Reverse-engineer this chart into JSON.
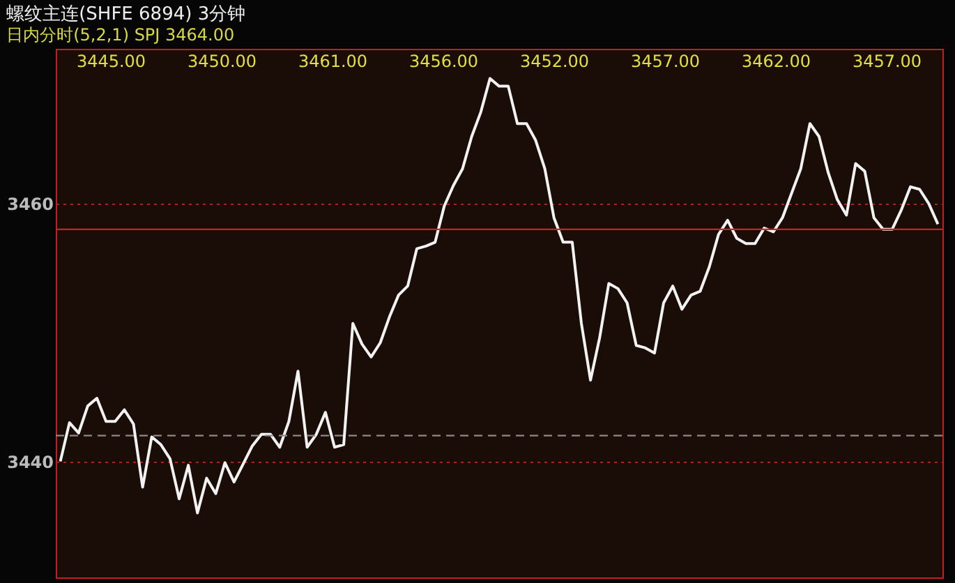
{
  "chart_data": {
    "type": "line",
    "title": "螺纹主连(SHFE 6894)  3分钟",
    "subtitle": "日内分时(5,2,1)  SPJ 3464.00",
    "categories": [
      null,
      null,
      null,
      null,
      null,
      null,
      null,
      null,
      null,
      null,
      null,
      null,
      null,
      null,
      null,
      null,
      null,
      null,
      null,
      null,
      null,
      null,
      null,
      null,
      null,
      null,
      null,
      null,
      null,
      null,
      null,
      null,
      null,
      null,
      null,
      null,
      null,
      null,
      null,
      null,
      null,
      null,
      null,
      null,
      null,
      null,
      null,
      null,
      null,
      null,
      null,
      null,
      null,
      null,
      null,
      null,
      null,
      null,
      null,
      null,
      null,
      null,
      null,
      null,
      null,
      null,
      null,
      null,
      null,
      null,
      null,
      null,
      null,
      null,
      null,
      null,
      null,
      null,
      null,
      null,
      null,
      null,
      null,
      null,
      null,
      null,
      null,
      null,
      null,
      null,
      null,
      null,
      null,
      null,
      null,
      null,
      null
    ],
    "series": [
      {
        "color": "#f2f2f2",
        "line_style": "solid",
        "values": [
          3440.0,
          3443.0,
          3442.2,
          3444.3,
          3444.9,
          3443.1,
          3443.1,
          3444.0,
          3442.9,
          3438.0,
          3441.9,
          3441.3,
          3440.2,
          3437.1,
          3439.7,
          3436.0,
          3438.7,
          3437.5,
          3439.9,
          3438.4,
          3439.8,
          3441.2,
          3442.1,
          3442.1,
          3441.1,
          3443.1,
          3447.0,
          3441.1,
          3442.1,
          3443.8,
          3441.1,
          3441.3,
          3450.7,
          3449.1,
          3448.1,
          3449.2,
          3451.2,
          3452.9,
          3453.6,
          3456.5,
          3456.7,
          3457.0,
          3459.8,
          3461.4,
          3462.7,
          3465.2,
          3467.1,
          3469.7,
          3469.1,
          3469.1,
          3466.2,
          3466.2,
          3464.9,
          3462.7,
          3458.9,
          3457.0,
          3457.0,
          3450.7,
          3446.3,
          3449.6,
          3453.8,
          3453.4,
          3452.3,
          3449.0,
          3448.8,
          3448.4,
          3452.3,
          3453.6,
          3451.8,
          3452.9,
          3453.2,
          3455.1,
          3457.6,
          3458.7,
          3457.3,
          3456.9,
          3456.9,
          3458.1,
          3457.8,
          3458.9,
          3460.8,
          3462.7,
          3466.2,
          3465.2,
          3462.4,
          3460.3,
          3459.1,
          3463.1,
          3462.5,
          3458.9,
          3458.0,
          3458.0,
          3459.5,
          3461.3,
          3461.1,
          3460.0,
          3458.4
        ]
      }
    ],
    "ylim": [
      3431,
      3472
    ],
    "yticks": [
      3440,
      3460
    ],
    "grid": "y",
    "tick_labels": "y",
    "ref_lines": [
      {
        "axis": "y",
        "value": 3458,
        "color": "#d02020",
        "line_style": "solid"
      },
      {
        "axis": "y",
        "value": 3442,
        "color": "#8a8a8a",
        "line_style": "dashed"
      }
    ],
    "annotations": [
      "3445.00",
      "3450.00",
      "3461.00",
      "3456.00",
      "3452.00",
      "3457.00",
      "3462.00",
      "3457.00"
    ]
  }
}
